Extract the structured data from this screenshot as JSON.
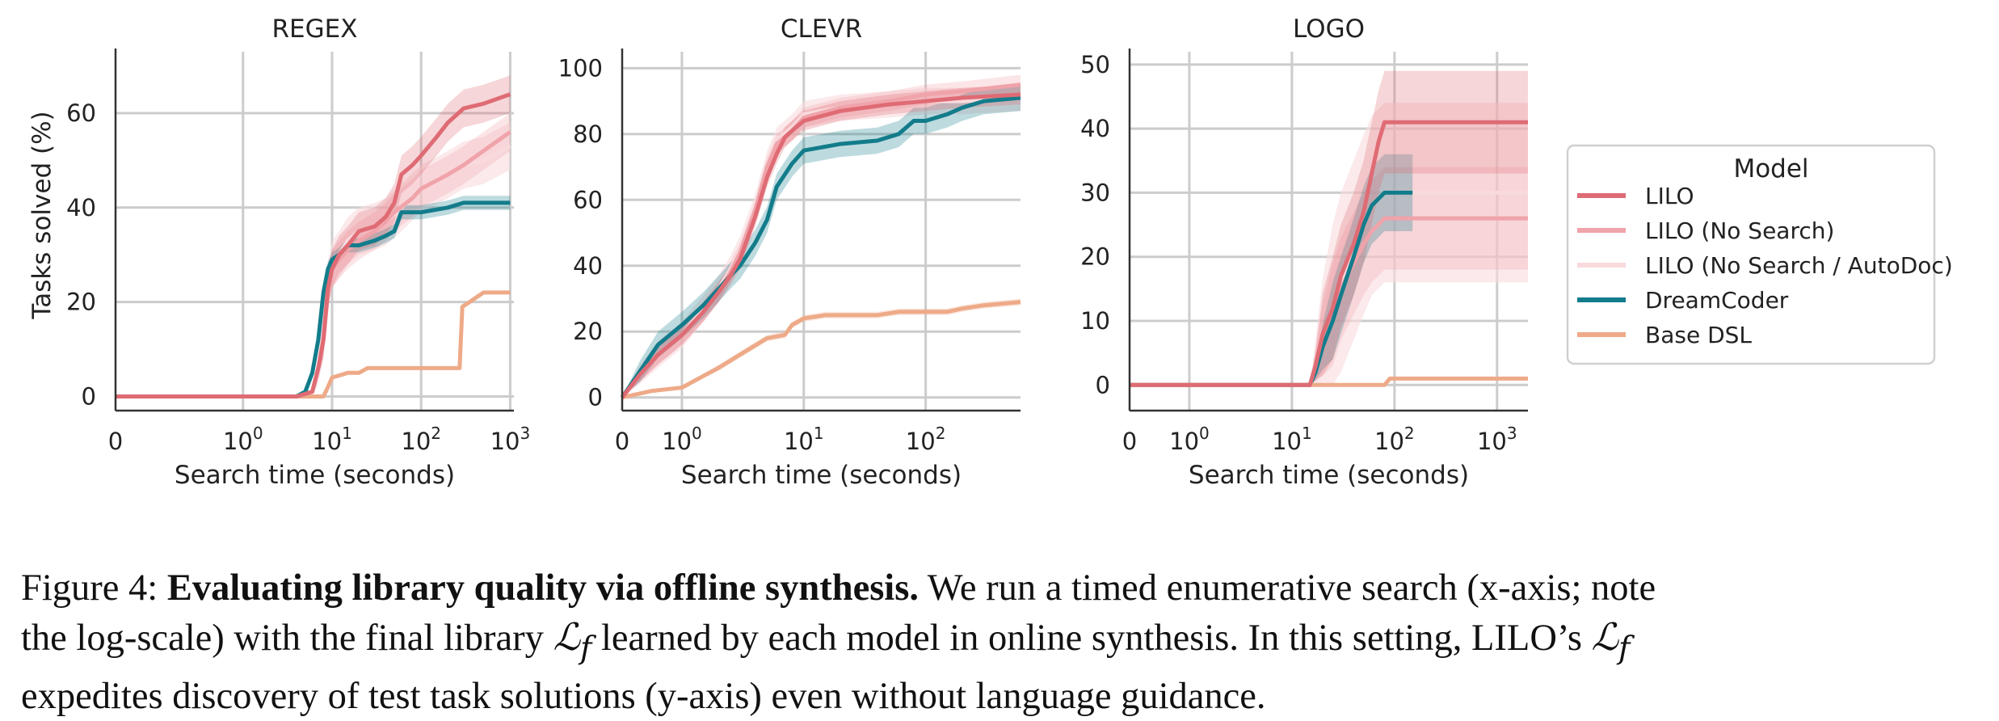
{
  "chart_data": [
    {
      "type": "line",
      "title": "REGEX",
      "xlabel": "Search time (seconds)",
      "ylabel": "Tasks solved (%)",
      "xscale": "symlog",
      "xlim": [
        0,
        1100
      ],
      "ylim": [
        -3,
        73
      ],
      "xticks": [
        {
          "v": 0,
          "label": "0"
        },
        {
          "v": 1,
          "label": "10",
          "exp": "0"
        },
        {
          "v": 10,
          "label": "10",
          "exp": "1"
        },
        {
          "v": 100,
          "label": "10",
          "exp": "2"
        },
        {
          "v": 1000,
          "label": "10",
          "exp": "3"
        }
      ],
      "yticks": [
        0,
        20,
        40,
        60
      ],
      "grid": true,
      "series": [
        {
          "name": "LILO",
          "band": 4,
          "points": [
            [
              0,
              0
            ],
            [
              4,
              0
            ],
            [
              6,
              1
            ],
            [
              7,
              6
            ],
            [
              8,
              12
            ],
            [
              9,
              23
            ],
            [
              10,
              27
            ],
            [
              12,
              30
            ],
            [
              15,
              32
            ],
            [
              20,
              35
            ],
            [
              30,
              36
            ],
            [
              40,
              38
            ],
            [
              50,
              41
            ],
            [
              60,
              47
            ],
            [
              80,
              49
            ],
            [
              100,
              51
            ],
            [
              150,
              55
            ],
            [
              200,
              58
            ],
            [
              300,
              61
            ],
            [
              500,
              62
            ],
            [
              1000,
              64
            ]
          ]
        },
        {
          "name": "LILO (No Search)",
          "band": 4,
          "points": [
            [
              0,
              0
            ],
            [
              4,
              0
            ],
            [
              6,
              1
            ],
            [
              7,
              6
            ],
            [
              8,
              12
            ],
            [
              9,
              22
            ],
            [
              10,
              27
            ],
            [
              12,
              29
            ],
            [
              15,
              31
            ],
            [
              20,
              33
            ],
            [
              30,
              35
            ],
            [
              40,
              37
            ],
            [
              50,
              39
            ],
            [
              80,
              42
            ],
            [
              100,
              44
            ],
            [
              200,
              47
            ],
            [
              300,
              49
            ],
            [
              500,
              52
            ],
            [
              1000,
              56
            ]
          ]
        },
        {
          "name": "LILO (No Search / AutoDoc)",
          "band": 5,
          "points": [
            [
              0,
              0
            ],
            [
              4,
              0
            ],
            [
              6,
              1
            ],
            [
              7,
              5
            ],
            [
              8,
              14
            ],
            [
              9,
              24
            ],
            [
              10,
              28
            ],
            [
              12,
              30
            ],
            [
              15,
              33
            ],
            [
              20,
              35
            ],
            [
              30,
              36
            ],
            [
              40,
              37
            ],
            [
              60,
              40
            ],
            [
              100,
              44
            ],
            [
              200,
              47
            ],
            [
              300,
              49
            ],
            [
              500,
              50
            ],
            [
              1000,
              53
            ]
          ]
        },
        {
          "name": "DreamCoder",
          "band": 1.5,
          "points": [
            [
              0,
              0
            ],
            [
              4,
              0
            ],
            [
              5,
              1
            ],
            [
              6,
              5
            ],
            [
              7,
              12
            ],
            [
              8,
              22
            ],
            [
              9,
              27
            ],
            [
              10,
              29
            ],
            [
              12,
              30
            ],
            [
              15,
              32
            ],
            [
              20,
              32
            ],
            [
              30,
              33
            ],
            [
              40,
              34
            ],
            [
              50,
              35
            ],
            [
              60,
              39
            ],
            [
              100,
              39
            ],
            [
              200,
              40
            ],
            [
              300,
              41
            ],
            [
              1000,
              41
            ]
          ]
        },
        {
          "name": "Base DSL",
          "band": 0,
          "points": [
            [
              0,
              0
            ],
            [
              8,
              0
            ],
            [
              9,
              2
            ],
            [
              10,
              4
            ],
            [
              15,
              5
            ],
            [
              20,
              5
            ],
            [
              25,
              6
            ],
            [
              100,
              6
            ],
            [
              270,
              6
            ],
            [
              290,
              19
            ],
            [
              350,
              20
            ],
            [
              500,
              22
            ],
            [
              1000,
              22
            ]
          ]
        }
      ]
    },
    {
      "type": "line",
      "title": "CLEVR",
      "xlabel": "Search time (seconds)",
      "ylabel": "",
      "xscale": "symlog",
      "xlim": [
        0,
        600
      ],
      "ylim": [
        -4,
        105
      ],
      "xticks": [
        {
          "v": 0,
          "label": "0"
        },
        {
          "v": 1,
          "label": "10",
          "exp": "0"
        },
        {
          "v": 10,
          "label": "10",
          "exp": "1"
        },
        {
          "v": 100,
          "label": "10",
          "exp": "2"
        }
      ],
      "yticks": [
        0,
        20,
        40,
        60,
        80,
        100
      ],
      "grid": true,
      "series": [
        {
          "name": "LILO",
          "band": 3,
          "points": [
            [
              0,
              0
            ],
            [
              0.3,
              7
            ],
            [
              0.6,
              13
            ],
            [
              1,
              19
            ],
            [
              1.5,
              26
            ],
            [
              2,
              32
            ],
            [
              2.5,
              37
            ],
            [
              3,
              42
            ],
            [
              4,
              55
            ],
            [
              5,
              67
            ],
            [
              6,
              74
            ],
            [
              7,
              79
            ],
            [
              8,
              81
            ],
            [
              10,
              84
            ],
            [
              20,
              87
            ],
            [
              50,
              89
            ],
            [
              100,
              90
            ],
            [
              200,
              91
            ],
            [
              600,
              92
            ]
          ]
        },
        {
          "name": "LILO (No Search)",
          "band": 3,
          "points": [
            [
              0,
              0
            ],
            [
              0.3,
              7
            ],
            [
              0.6,
              13
            ],
            [
              1,
              19
            ],
            [
              1.5,
              26
            ],
            [
              2,
              32
            ],
            [
              2.5,
              38
            ],
            [
              3,
              44
            ],
            [
              4,
              57
            ],
            [
              5,
              70
            ],
            [
              6,
              77
            ],
            [
              8,
              81
            ],
            [
              10,
              85
            ],
            [
              20,
              88
            ],
            [
              50,
              90
            ],
            [
              100,
              92
            ],
            [
              200,
              93
            ],
            [
              600,
              95
            ]
          ]
        },
        {
          "name": "LILO (No Search / AutoDoc)",
          "band": 4,
          "points": [
            [
              0,
              0
            ],
            [
              0.3,
              7
            ],
            [
              0.6,
              13
            ],
            [
              1,
              19
            ],
            [
              1.5,
              27
            ],
            [
              2,
              33
            ],
            [
              2.5,
              39
            ],
            [
              3,
              45
            ],
            [
              4,
              58
            ],
            [
              5,
              71
            ],
            [
              6,
              78
            ],
            [
              8,
              82
            ],
            [
              10,
              86
            ],
            [
              20,
              88
            ],
            [
              50,
              89
            ],
            [
              100,
              90
            ],
            [
              200,
              90
            ],
            [
              600,
              91
            ]
          ]
        },
        {
          "name": "DreamCoder",
          "band": 4,
          "points": [
            [
              0,
              0
            ],
            [
              0.3,
              8
            ],
            [
              0.6,
              16
            ],
            [
              1,
              22
            ],
            [
              1.5,
              28
            ],
            [
              2,
              33
            ],
            [
              2.5,
              37
            ],
            [
              3,
              40
            ],
            [
              4,
              47
            ],
            [
              5,
              54
            ],
            [
              6,
              64
            ],
            [
              8,
              71
            ],
            [
              10,
              75
            ],
            [
              20,
              77
            ],
            [
              40,
              78
            ],
            [
              60,
              80
            ],
            [
              80,
              84
            ],
            [
              100,
              84
            ],
            [
              150,
              86
            ],
            [
              200,
              88
            ],
            [
              300,
              90
            ],
            [
              600,
              91
            ]
          ]
        },
        {
          "name": "Base DSL",
          "band": 1,
          "points": [
            [
              0,
              0
            ],
            [
              0.5,
              2
            ],
            [
              1,
              3
            ],
            [
              2,
              9
            ],
            [
              3,
              13
            ],
            [
              5,
              18
            ],
            [
              7,
              19
            ],
            [
              8,
              22
            ],
            [
              10,
              24
            ],
            [
              15,
              25
            ],
            [
              40,
              25
            ],
            [
              60,
              26
            ],
            [
              150,
              26
            ],
            [
              200,
              27
            ],
            [
              300,
              28
            ],
            [
              600,
              29
            ]
          ]
        }
      ]
    },
    {
      "type": "line",
      "title": "LOGO",
      "xlabel": "Search time (seconds)",
      "ylabel": "",
      "xscale": "symlog",
      "xlim": [
        0,
        2000
      ],
      "ylim": [
        -4,
        52
      ],
      "xticks": [
        {
          "v": 0,
          "label": "0"
        },
        {
          "v": 1,
          "label": "10",
          "exp": "0"
        },
        {
          "v": 10,
          "label": "10",
          "exp": "1"
        },
        {
          "v": 100,
          "label": "10",
          "exp": "2"
        },
        {
          "v": 1000,
          "label": "10",
          "exp": "3"
        }
      ],
      "yticks": [
        0,
        10,
        20,
        30,
        40,
        50
      ],
      "grid": true,
      "series": [
        {
          "name": "LILO",
          "band": 8,
          "points": [
            [
              0,
              0
            ],
            [
              15,
              0
            ],
            [
              17,
              3
            ],
            [
              20,
              8
            ],
            [
              25,
              12
            ],
            [
              30,
              17
            ],
            [
              40,
              22
            ],
            [
              50,
              27
            ],
            [
              60,
              33
            ],
            [
              70,
              38
            ],
            [
              80,
              41
            ],
            [
              100,
              41
            ],
            [
              2000,
              41
            ]
          ]
        },
        {
          "name": "LILO (No Search)",
          "band": 8,
          "points": [
            [
              0,
              0
            ],
            [
              15,
              0
            ],
            [
              17,
              3
            ],
            [
              20,
              7
            ],
            [
              25,
              11
            ],
            [
              30,
              15
            ],
            [
              40,
              19
            ],
            [
              50,
              22
            ],
            [
              60,
              24
            ],
            [
              80,
              26
            ],
            [
              100,
              26
            ],
            [
              2000,
              26
            ]
          ]
        },
        {
          "name": "LILO (No Search / AutoDoc)",
          "band": 14,
          "points": [
            [
              0,
              0
            ],
            [
              15,
              0
            ],
            [
              17,
              3
            ],
            [
              20,
              7
            ],
            [
              25,
              11
            ],
            [
              30,
              16
            ],
            [
              40,
              21
            ],
            [
              50,
              25
            ],
            [
              60,
              28
            ],
            [
              80,
              30
            ],
            [
              100,
              30
            ],
            [
              2000,
              30
            ]
          ]
        },
        {
          "name": "DreamCoder",
          "band": 6,
          "points": [
            [
              0,
              0
            ],
            [
              15,
              0
            ],
            [
              17,
              2
            ],
            [
              20,
              6
            ],
            [
              25,
              10
            ],
            [
              30,
              14
            ],
            [
              40,
              20
            ],
            [
              50,
              25
            ],
            [
              60,
              28
            ],
            [
              80,
              30
            ],
            [
              150,
              30
            ]
          ]
        },
        {
          "name": "Base DSL",
          "band": 0,
          "points": [
            [
              0,
              0
            ],
            [
              80,
              0
            ],
            [
              90,
              1
            ],
            [
              2000,
              1
            ]
          ]
        }
      ]
    }
  ],
  "legend": {
    "title": "Model",
    "entries": [
      "LILO",
      "LILO (No Search)",
      "LILO (No Search / AutoDoc)",
      "DreamCoder",
      "Base DSL"
    ]
  },
  "colors": {
    "LILO": "#df6b74",
    "LILO (No Search)": "#f0a3aa",
    "LILO (No Search / AutoDoc)": "#f8dadd",
    "DreamCoder": "#137c8b",
    "Base DSL": "#eeaa88",
    "grid": "#cccccc",
    "axis": "#333333"
  },
  "caption": {
    "label": "Figure 4:",
    "bold": "Evaluating library quality via offline synthesis.",
    "line1_rest": "We run a timed enumerative search (x-axis; note",
    "line2_a": "the log-scale) with the final library",
    "lf": "ℒ",
    "lf_sub": "f",
    "line2_b": "learned by each model in online synthesis. In this setting,",
    "lilo": "LILO",
    "line2_c": "’s",
    "line3": "expedites discovery of test task solutions (y-axis) even without language guidance."
  }
}
